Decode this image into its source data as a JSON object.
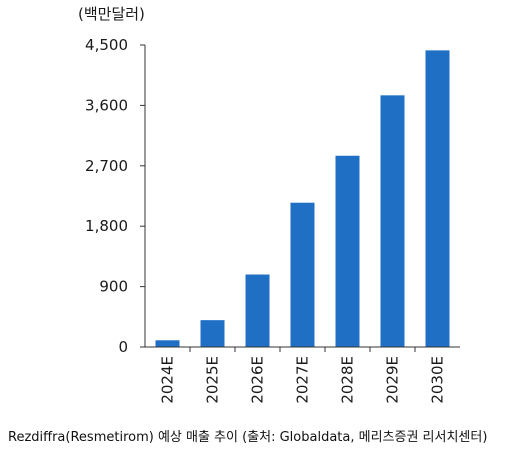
{
  "unit_label": "(백만달러)",
  "caption": "Rezdiffra(Resmetirom) 예상 매출 추이 (출처: Globaldata, 메리츠증권 리서치센터)",
  "chart_data": {
    "type": "bar",
    "categories": [
      "2024E",
      "2025E",
      "2026E",
      "2027E",
      "2028E",
      "2029E",
      "2030E"
    ],
    "values": [
      100,
      400,
      1080,
      2150,
      2850,
      3750,
      4420
    ],
    "ylim": [
      0,
      4500
    ],
    "yticks": [
      0,
      900,
      1800,
      2700,
      3600,
      4500
    ],
    "ytick_labels": [
      "0",
      "900",
      "1,800",
      "2,700",
      "3,600",
      "4,500"
    ],
    "bar_color": "#1f6fc5",
    "grid": false,
    "legend": "none"
  }
}
